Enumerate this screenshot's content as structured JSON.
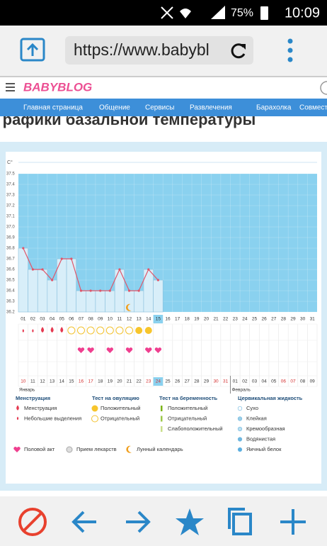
{
  "status_bar": {
    "battery": "75%",
    "time": "10:09"
  },
  "browser": {
    "url": "https://www.babybl"
  },
  "site": {
    "logo": "BABYBLOG",
    "nav": [
      "Главная страница",
      "Общение",
      "Сервисы",
      "Развлечения",
      "Барахолка",
      "Совмест"
    ],
    "heading": "Графики базальной температуры"
  },
  "chart_data": {
    "type": "line",
    "y_label": "C°",
    "categories": [
      "01",
      "02",
      "03",
      "04",
      "05",
      "06",
      "07",
      "08",
      "09",
      "10",
      "11",
      "12",
      "13",
      "14",
      "15",
      "16",
      "17",
      "18",
      "19",
      "20",
      "21",
      "22",
      "23",
      "24",
      "25",
      "26",
      "27",
      "28",
      "29",
      "30",
      "31"
    ],
    "values": [
      36.8,
      36.6,
      36.6,
      36.5,
      36.7,
      36.7,
      36.4,
      36.4,
      36.4,
      36.4,
      36.6,
      36.4,
      36.4,
      36.6,
      36.5,
      null,
      null,
      null,
      null,
      null,
      null,
      null,
      null,
      null,
      null,
      null,
      null,
      null,
      null,
      null,
      null
    ],
    "color": "#e0566a",
    "ylim": [
      36.2,
      37.5
    ],
    "yticks": [
      36.2,
      36.3,
      36.4,
      36.5,
      36.6,
      36.7,
      36.8,
      36.9,
      {
        "value": 37,
        "label": "37.0"
      },
      37.1,
      37.2,
      37.3,
      37.4,
      37.5
    ],
    "dates": [
      "10",
      "11",
      "12",
      "13",
      "14",
      "15",
      "16",
      "17",
      "18",
      "19",
      "20",
      "21",
      "22",
      "23",
      "24",
      "25",
      "26",
      "27",
      "28",
      "29",
      "30",
      "31",
      "01",
      "02",
      "03",
      "04",
      "05",
      "06",
      "07",
      "08",
      "09"
    ],
    "months": [
      "Январь",
      "Февраль"
    ]
  },
  "legend": {
    "groups": [
      {
        "title": "Менструация",
        "items": [
          "Менструация",
          "Небольшие выделения"
        ]
      },
      {
        "title": "Тест на овуляцию",
        "items": [
          "Положительный",
          "Отрицательный"
        ]
      },
      {
        "title": "Тест на беременность",
        "items": [
          "Положительный",
          "Отрицательный",
          "Слабоположительный"
        ]
      },
      {
        "title": "Цервикальная жидкость",
        "items": [
          "Сухо",
          "Клейкая",
          "Кремообразная",
          "Водянистая",
          "Яичный белок"
        ]
      }
    ],
    "extra": [
      "Половой акт",
      "Прием лекарств",
      "Лунный календарь"
    ]
  }
}
